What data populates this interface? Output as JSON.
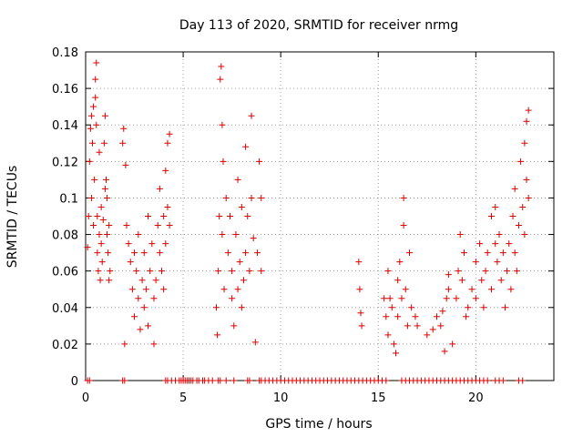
{
  "chart_data": {
    "type": "scatter",
    "title": "Day 113 of 2020, SRMTID for receiver nrmg",
    "xlabel": "GPS time / hours",
    "ylabel": "SRMTID / TECUs",
    "xlim": [
      0,
      24
    ],
    "ylim": [
      0,
      0.18
    ],
    "xticks": [
      0,
      5,
      10,
      15,
      20
    ],
    "xtick_labels": [
      "0",
      "5",
      "10",
      "15",
      "20"
    ],
    "yticks": [
      0,
      0.02,
      0.04,
      0.06,
      0.08,
      0.1,
      0.12,
      0.14,
      0.16,
      0.18
    ],
    "ytick_labels": [
      "0",
      "0.02",
      "0.04",
      "0.06",
      "0.08",
      "0.1",
      "0.12",
      "0.14",
      "0.16",
      "0.18"
    ],
    "grid": true,
    "marker": "+",
    "color": "#dd0000",
    "series": [
      {
        "name": "SRMTID",
        "points": [
          [
            0.1,
            0.073
          ],
          [
            0.15,
            0.09
          ],
          [
            0.2,
            0.12
          ],
          [
            0.25,
            0.138
          ],
          [
            0.3,
            0.145
          ],
          [
            0.3,
            0.1
          ],
          [
            0.35,
            0.13
          ],
          [
            0.4,
            0.15
          ],
          [
            0.4,
            0.085
          ],
          [
            0.45,
            0.11
          ],
          [
            0.5,
            0.155
          ],
          [
            0.5,
            0.165
          ],
          [
            0.55,
            0.174
          ],
          [
            0.55,
            0.14
          ],
          [
            0.6,
            0.07
          ],
          [
            0.6,
            0.09
          ],
          [
            0.65,
            0.06
          ],
          [
            0.7,
            0.08
          ],
          [
            0.7,
            0.125
          ],
          [
            0.75,
            0.055
          ],
          [
            0.8,
            0.075
          ],
          [
            0.8,
            0.095
          ],
          [
            0.85,
            0.065
          ],
          [
            0.9,
            0.088
          ],
          [
            0.95,
            0.13
          ],
          [
            1.0,
            0.145
          ],
          [
            1.0,
            0.105
          ],
          [
            1.05,
            0.11
          ],
          [
            1.1,
            0.1
          ],
          [
            1.1,
            0.08
          ],
          [
            1.15,
            0.07
          ],
          [
            1.2,
            0.085
          ],
          [
            1.2,
            0.055
          ],
          [
            1.25,
            0.06
          ],
          [
            1.9,
            0.13
          ],
          [
            1.95,
            0.138
          ],
          [
            2.0,
            0.02
          ],
          [
            2.05,
            0.118
          ],
          [
            2.1,
            0.085
          ],
          [
            2.2,
            0.075
          ],
          [
            2.3,
            0.065
          ],
          [
            2.4,
            0.05
          ],
          [
            2.5,
            0.07
          ],
          [
            2.5,
            0.035
          ],
          [
            2.6,
            0.06
          ],
          [
            2.7,
            0.08
          ],
          [
            2.7,
            0.045
          ],
          [
            2.8,
            0.028
          ],
          [
            2.9,
            0.055
          ],
          [
            3.0,
            0.07
          ],
          [
            3.0,
            0.04
          ],
          [
            3.1,
            0.05
          ],
          [
            3.2,
            0.09
          ],
          [
            3.2,
            0.03
          ],
          [
            3.3,
            0.06
          ],
          [
            3.4,
            0.075
          ],
          [
            3.5,
            0.02
          ],
          [
            3.5,
            0.045
          ],
          [
            3.6,
            0.055
          ],
          [
            3.7,
            0.085
          ],
          [
            3.8,
            0.07
          ],
          [
            3.8,
            0.105
          ],
          [
            3.9,
            0.06
          ],
          [
            4.0,
            0.09
          ],
          [
            4.0,
            0.05
          ],
          [
            4.1,
            0.115
          ],
          [
            4.1,
            0.075
          ],
          [
            4.2,
            0.13
          ],
          [
            4.2,
            0.095
          ],
          [
            4.3,
            0.135
          ],
          [
            4.3,
            0.085
          ],
          [
            6.7,
            0.04
          ],
          [
            6.75,
            0.025
          ],
          [
            6.8,
            0.06
          ],
          [
            6.85,
            0.09
          ],
          [
            6.9,
            0.165
          ],
          [
            6.95,
            0.172
          ],
          [
            7.0,
            0.14
          ],
          [
            7.0,
            0.08
          ],
          [
            7.05,
            0.12
          ],
          [
            7.1,
            0.05
          ],
          [
            7.2,
            0.1
          ],
          [
            7.3,
            0.07
          ],
          [
            7.4,
            0.09
          ],
          [
            7.5,
            0.045
          ],
          [
            7.5,
            0.06
          ],
          [
            7.6,
            0.03
          ],
          [
            7.7,
            0.08
          ],
          [
            7.8,
            0.11
          ],
          [
            7.8,
            0.05
          ],
          [
            7.9,
            0.065
          ],
          [
            8.0,
            0.04
          ],
          [
            8.0,
            0.095
          ],
          [
            8.1,
            0.055
          ],
          [
            8.2,
            0.07
          ],
          [
            8.2,
            0.128
          ],
          [
            8.3,
            0.09
          ],
          [
            8.4,
            0.06
          ],
          [
            8.5,
            0.145
          ],
          [
            8.5,
            0.1
          ],
          [
            8.6,
            0.078
          ],
          [
            8.7,
            0.021
          ],
          [
            8.8,
            0.07
          ],
          [
            8.9,
            0.12
          ],
          [
            9.0,
            0.1
          ],
          [
            9.0,
            0.06
          ],
          [
            14.0,
            0.065
          ],
          [
            14.05,
            0.05
          ],
          [
            14.1,
            0.037
          ],
          [
            14.15,
            0.03
          ],
          [
            15.3,
            0.045
          ],
          [
            15.4,
            0.035
          ],
          [
            15.5,
            0.025
          ],
          [
            15.5,
            0.06
          ],
          [
            15.6,
            0.045
          ],
          [
            15.7,
            0.04
          ],
          [
            15.8,
            0.02
          ],
          [
            15.9,
            0.015
          ],
          [
            16.0,
            0.055
          ],
          [
            16.0,
            0.035
          ],
          [
            16.1,
            0.065
          ],
          [
            16.2,
            0.045
          ],
          [
            16.3,
            0.085
          ],
          [
            16.3,
            0.1
          ],
          [
            16.4,
            0.05
          ],
          [
            16.5,
            0.03
          ],
          [
            16.6,
            0.07
          ],
          [
            16.7,
            0.04
          ],
          [
            16.9,
            0.035
          ],
          [
            17.0,
            0.03
          ],
          [
            17.5,
            0.025
          ],
          [
            17.8,
            0.028
          ],
          [
            18.0,
            0.035
          ],
          [
            18.2,
            0.03
          ],
          [
            18.3,
            0.038
          ],
          [
            18.4,
            0.016
          ],
          [
            18.5,
            0.045
          ],
          [
            18.6,
            0.05
          ],
          [
            18.6,
            0.058
          ],
          [
            18.8,
            0.02
          ],
          [
            19.0,
            0.045
          ],
          [
            19.1,
            0.06
          ],
          [
            19.2,
            0.08
          ],
          [
            19.3,
            0.055
          ],
          [
            19.4,
            0.07
          ],
          [
            19.5,
            0.035
          ],
          [
            19.6,
            0.04
          ],
          [
            19.8,
            0.05
          ],
          [
            20.0,
            0.065
          ],
          [
            20.0,
            0.045
          ],
          [
            20.2,
            0.075
          ],
          [
            20.3,
            0.055
          ],
          [
            20.4,
            0.04
          ],
          [
            20.5,
            0.06
          ],
          [
            20.6,
            0.07
          ],
          [
            20.8,
            0.09
          ],
          [
            20.8,
            0.05
          ],
          [
            21.0,
            0.075
          ],
          [
            21.0,
            0.095
          ],
          [
            21.1,
            0.065
          ],
          [
            21.2,
            0.08
          ],
          [
            21.3,
            0.055
          ],
          [
            21.4,
            0.07
          ],
          [
            21.5,
            0.04
          ],
          [
            21.6,
            0.06
          ],
          [
            21.7,
            0.075
          ],
          [
            21.8,
            0.05
          ],
          [
            21.9,
            0.09
          ],
          [
            22.0,
            0.07
          ],
          [
            22.0,
            0.105
          ],
          [
            22.1,
            0.06
          ],
          [
            22.2,
            0.085
          ],
          [
            22.3,
            0.12
          ],
          [
            22.4,
            0.095
          ],
          [
            22.5,
            0.08
          ],
          [
            22.5,
            0.13
          ],
          [
            22.6,
            0.11
          ],
          [
            22.6,
            0.142
          ],
          [
            22.7,
            0.148
          ],
          [
            22.7,
            0.1
          ]
        ]
      }
    ],
    "zero_points_x": [
      0.1,
      0.2,
      1.9,
      2.0,
      4.1,
      4.2,
      4.4,
      4.6,
      4.8,
      4.9,
      5.0,
      5.1,
      5.2,
      5.3,
      5.4,
      5.5,
      5.7,
      5.8,
      6.0,
      6.1,
      6.3,
      6.5,
      6.8,
      6.9,
      7.2,
      7.6,
      8.3,
      8.4,
      8.9,
      9.0,
      9.2,
      9.4,
      9.6,
      9.8,
      10.0,
      10.2,
      10.4,
      10.6,
      10.8,
      11.0,
      11.2,
      11.4,
      11.6,
      11.8,
      12.0,
      12.2,
      12.4,
      12.6,
      12.8,
      13.0,
      13.2,
      13.4,
      13.6,
      13.8,
      14.0,
      14.2,
      14.4,
      14.6,
      14.8,
      15.0,
      15.2,
      15.4,
      16.2,
      16.4,
      16.6,
      16.8,
      17.0,
      17.2,
      17.4,
      17.6,
      17.8,
      18.0,
      18.2,
      18.4,
      18.6,
      18.8,
      19.0,
      19.2,
      19.4,
      19.6,
      19.8,
      20.0,
      20.2,
      20.4,
      20.6,
      21.0,
      21.2,
      21.4,
      22.2,
      22.4
    ]
  }
}
